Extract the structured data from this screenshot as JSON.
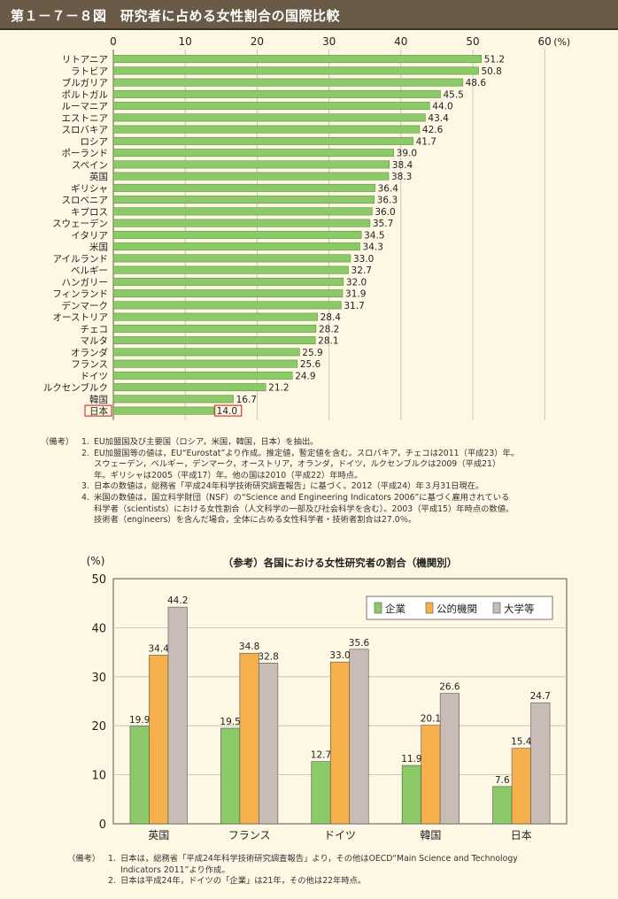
{
  "title": "第１－７－８図　研究者に占める女性割合の国際比較",
  "chart_data": [
    {
      "type": "bar",
      "orientation": "horizontal",
      "xlim": [
        0,
        60
      ],
      "ticks": [
        "0",
        "10",
        "20",
        "30",
        "40",
        "50",
        "60"
      ],
      "unit": "(%)",
      "grid": true,
      "highlight": "日本",
      "categories": [
        "リトアニア",
        "ラトビア",
        "ブルガリア",
        "ポルトガル",
        "ルーマニア",
        "エストニア",
        "スロバキア",
        "ロシア",
        "ポーランド",
        "スペイン",
        "英国",
        "ギリシャ",
        "スロベニア",
        "キプロス",
        "スウェーデン",
        "イタリア",
        "米国",
        "アイルランド",
        "ベルギー",
        "ハンガリー",
        "フィンランド",
        "デンマーク",
        "オーストリア",
        "チェコ",
        "マルタ",
        "オランダ",
        "フランス",
        "ドイツ",
        "ルクセンブルク",
        "韓国",
        "日本"
      ],
      "values": [
        51.2,
        50.8,
        48.6,
        45.5,
        44.0,
        43.4,
        42.6,
        41.7,
        39.0,
        38.4,
        38.3,
        36.4,
        36.3,
        36.0,
        35.7,
        34.5,
        34.3,
        33.0,
        32.7,
        32.0,
        31.9,
        31.7,
        28.4,
        28.2,
        28.1,
        25.9,
        25.6,
        24.9,
        21.2,
        16.7,
        14.0
      ],
      "labels": [
        "51.2",
        "50.8",
        "48.6",
        "45.5",
        "44.0",
        "43.4",
        "42.6",
        "41.7",
        "39.0",
        "38.4",
        "38.3",
        "36.4",
        "36.3",
        "36.0",
        "35.7",
        "34.5",
        "34.3",
        "33.0",
        "32.7",
        "32.0",
        "31.9",
        "31.7",
        "28.4",
        "28.2",
        "28.1",
        "25.9",
        "25.6",
        "24.9",
        "21.2",
        "16.7",
        "14.0"
      ],
      "colors": {
        "bar": "#8cc968",
        "bar_dark": "#4a8a2c",
        "highlight_box": "#d73a3a"
      }
    },
    {
      "type": "bar",
      "title": "（参考）各国における女性研究者の割合（機関別）",
      "ylabel": "(%)",
      "ylim": [
        0,
        50
      ],
      "ticks": [
        "0",
        "10",
        "20",
        "30",
        "40",
        "50"
      ],
      "categories": [
        "英国",
        "フランス",
        "ドイツ",
        "韓国",
        "日本"
      ],
      "series": [
        {
          "name": "企業",
          "values": [
            19.9,
            19.5,
            12.7,
            11.9,
            7.6
          ],
          "labels": [
            "19.9",
            "19.5",
            "12.7",
            "11.9",
            "7.6"
          ],
          "color": "#8cc968"
        },
        {
          "name": "公的機関",
          "values": [
            34.4,
            34.8,
            33.0,
            20.1,
            15.4
          ],
          "labels": [
            "34.4",
            "34.8",
            "33.0",
            "20.1",
            "15.4"
          ],
          "color": "#f5b04c"
        },
        {
          "name": "大学等",
          "values": [
            44.2,
            32.8,
            35.6,
            26.6,
            24.7
          ],
          "labels": [
            "44.2",
            "32.8",
            "35.6",
            "26.6",
            "24.7"
          ],
          "color": "#c9bcb6"
        }
      ],
      "legend_position": "top-right",
      "grid": true
    }
  ],
  "notes1": {
    "head": "（備考）",
    "items": [
      {
        "num": "1.",
        "lines": [
          "EU加盟国及び主要国（ロシア，米国，韓国，日本）を抽出。"
        ]
      },
      {
        "num": "2.",
        "lines": [
          "EU加盟国等の値は，EU“Eurostat”より作成。推定値，暫定値を含む。スロバキア，チェコは2011（平成23）年。",
          "スウェーデン，ベルギー，デンマーク，オーストリア，オランダ，ドイツ，ルクセンブルクは2009（平成21）",
          "年。ギリシャは2005（平成17）年。他の国は2010（平成22）年時点。"
        ]
      },
      {
        "num": "3.",
        "lines": [
          "日本の数値は，総務省「平成24年科学技術研究調査報告」に基づく。2012（平成24）年３月31日現在。"
        ]
      },
      {
        "num": "4.",
        "lines": [
          "米国の数値は，国立科学財団（NSF）の“Science and Engineering Indicators 2006”に基づく雇用されている",
          "科学者（scientists）における女性割合（人文科学の一部及び社会科学を含む）。2003（平成15）年時点の数値。",
          "技術者（engineers）を含んだ場合，全体に占める女性科学者・技術者割合は27.0％。"
        ]
      }
    ]
  },
  "notes2": {
    "head": "（備考）",
    "items": [
      {
        "num": "1.",
        "lines": [
          "日本は，総務省「平成24年科学技術研究調査報告」より，その他はOECD“Main Science and Technology",
          "Indicators 2011”より作成。"
        ]
      },
      {
        "num": "2.",
        "lines": [
          "日本は平成24年，ドイツの「企業」は21年，その他は22年時点。"
        ]
      }
    ]
  }
}
